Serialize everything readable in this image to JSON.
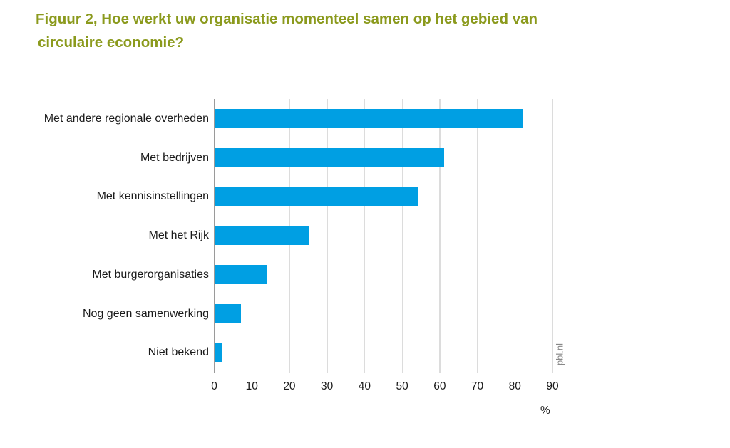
{
  "title": {
    "line1": "Figuur 2,  Hoe werkt uw organisatie momenteel samen op het gebied van",
    "line2": "circulaire economie?"
  },
  "source": "pbl.nl",
  "colors": {
    "title": "#8b9a1d",
    "bar": "#009fe3",
    "grid": "#dcdcdc"
  },
  "chart_data": {
    "type": "bar",
    "orientation": "horizontal",
    "title": "Figuur 2, Hoe werkt uw organisatie momenteel samen op het gebied van circulaire economie?",
    "categories": [
      "Met andere regionale overheden",
      "Met bedrijven",
      "Met kennisinstellingen",
      "Met het Rijk",
      "Met burgerorganisaties",
      "Nog geen samenwerking",
      "Niet bekend"
    ],
    "values": [
      82,
      61,
      54,
      25,
      14,
      7,
      2
    ],
    "xlabel": "%",
    "ylabel": "",
    "xlim": [
      0,
      90
    ],
    "xticks": [
      "0",
      "10",
      "20",
      "30",
      "40",
      "50",
      "60",
      "70",
      "80",
      "90"
    ],
    "grid": true,
    "legend": null,
    "annotation": "pbl.nl"
  }
}
